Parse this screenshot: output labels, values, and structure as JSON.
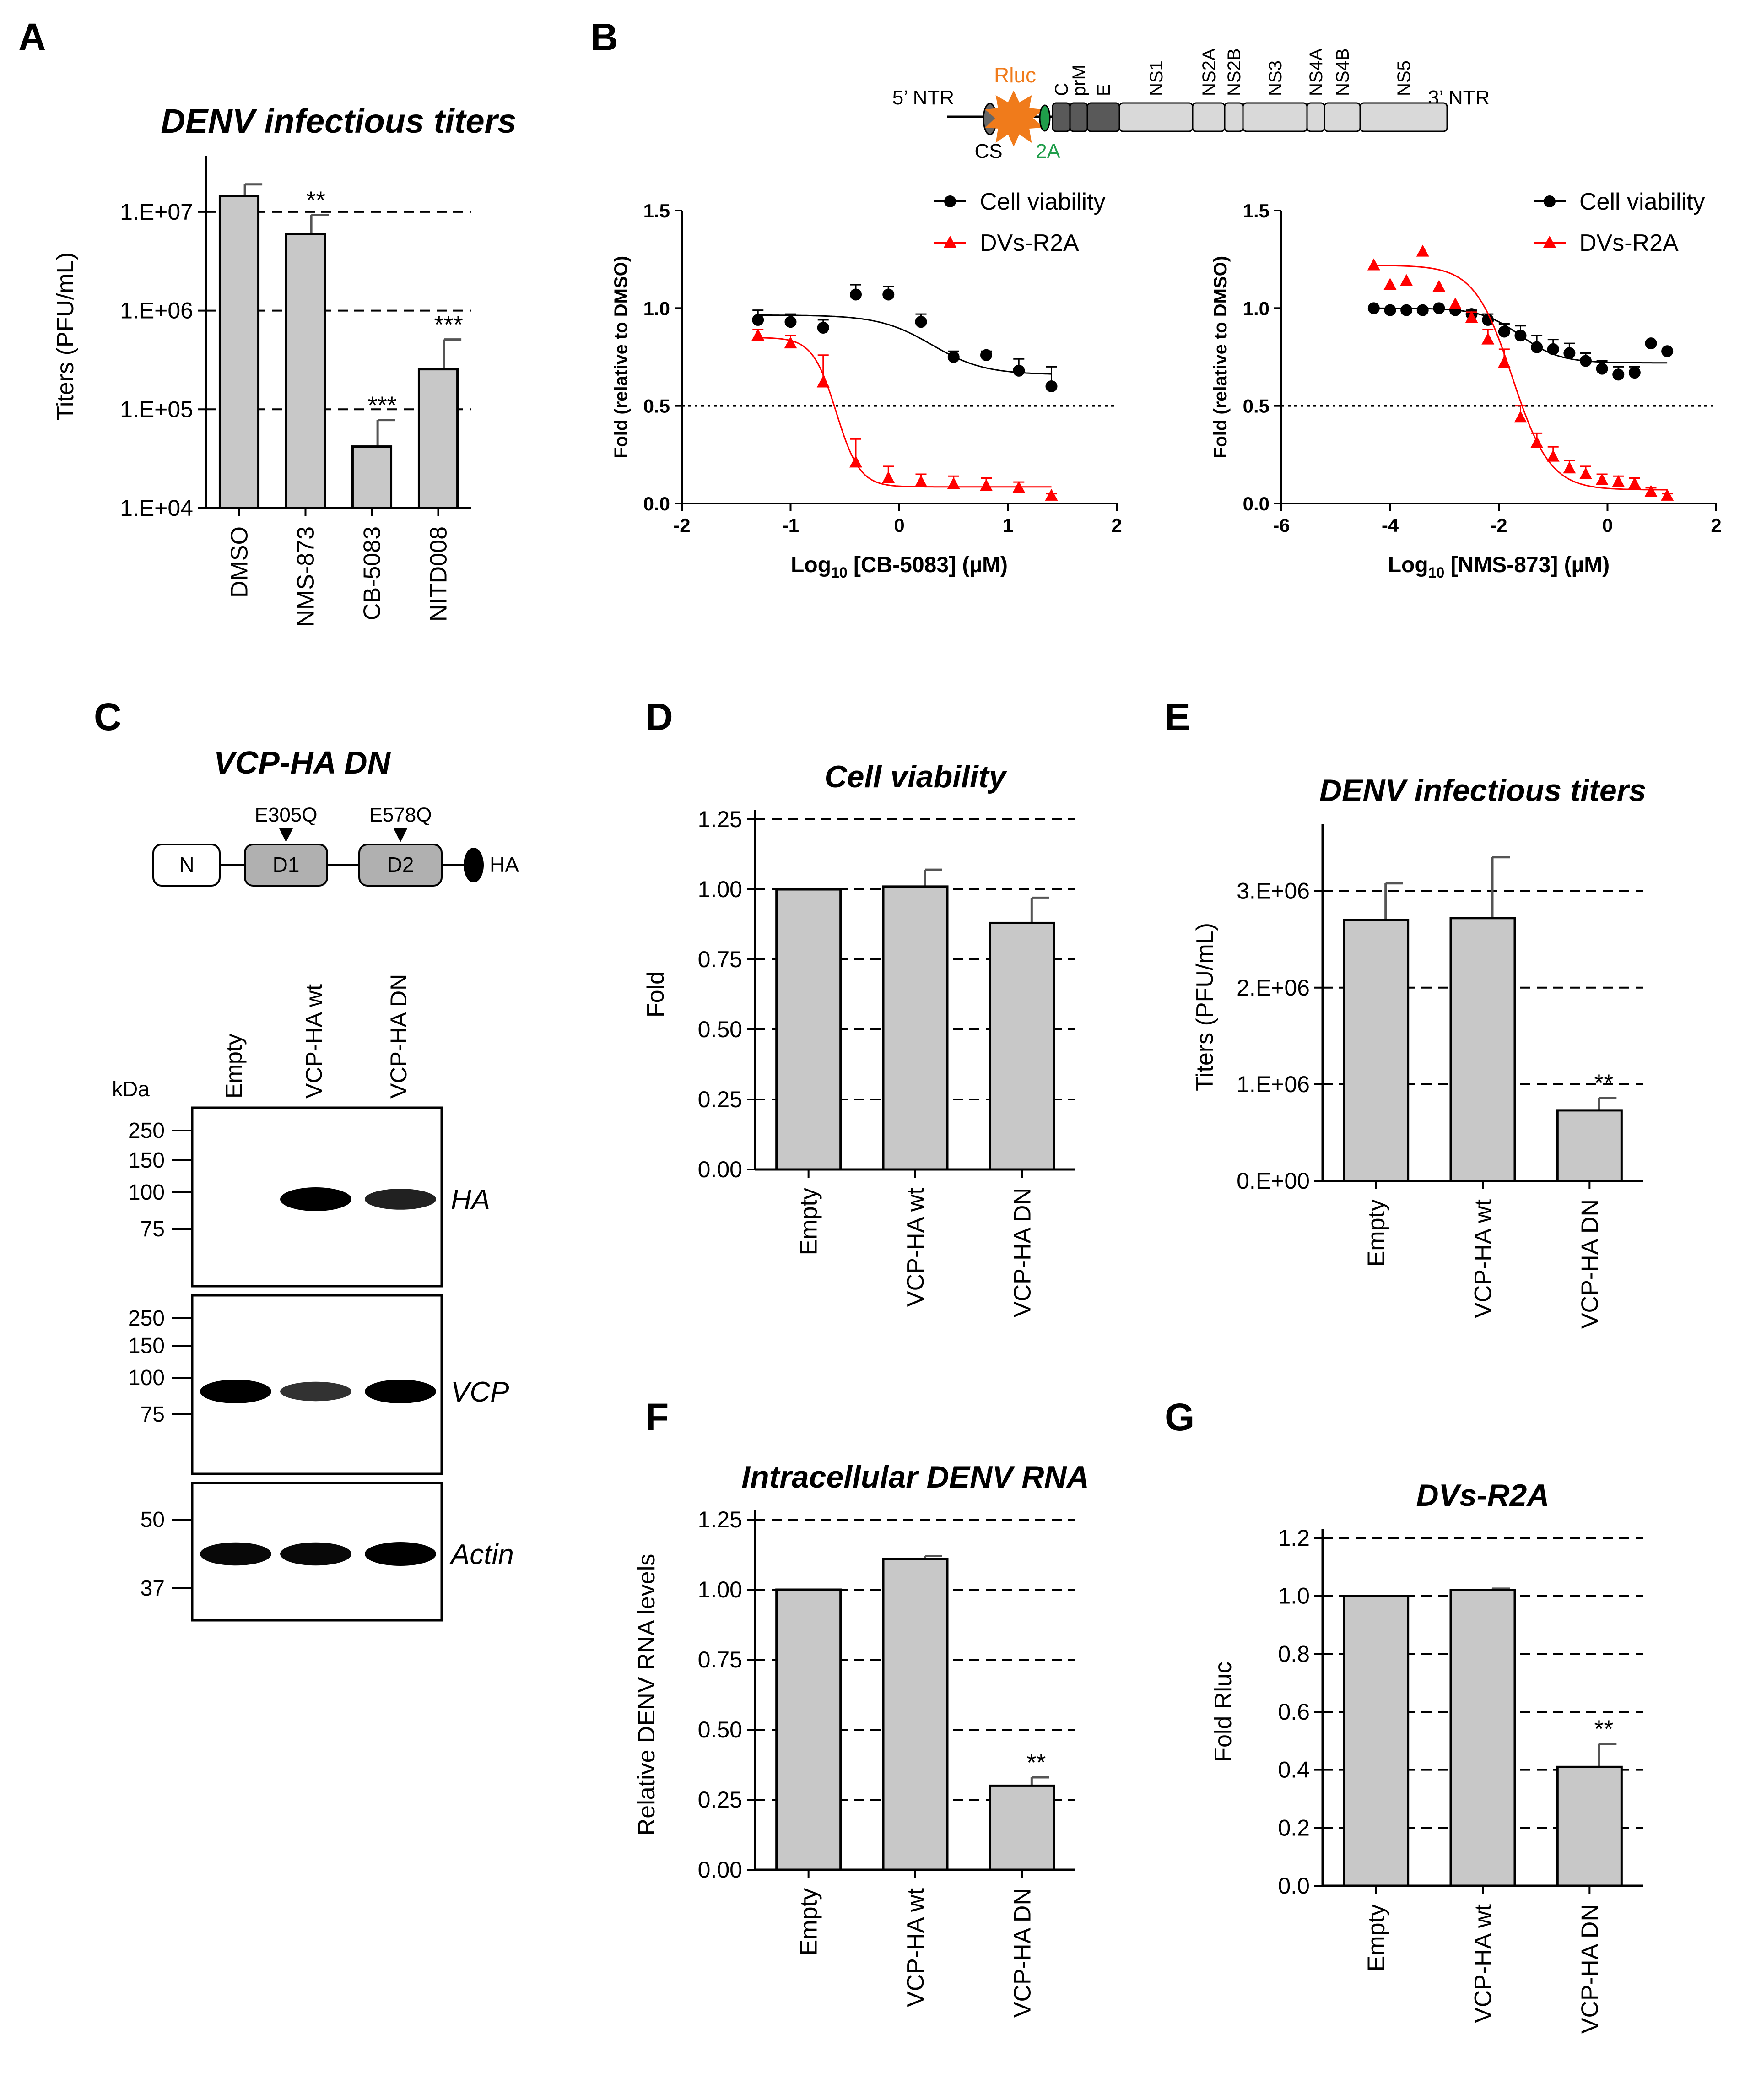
{
  "panels": {
    "A": {
      "letter": "A",
      "chart_data": {
        "type": "bar",
        "title": "DENV infectious titers",
        "ylabel": "Titers (PFU/mL)",
        "yscale": "log",
        "ylim": [
          10000,
          30000000
        ],
        "yticks": [
          "1.E+04",
          "1.E+05",
          "1.E+06",
          "1.E+07"
        ],
        "categories": [
          "DMSO",
          "NMS-873",
          "CB-5083",
          "NITD008"
        ],
        "values": [
          14500000,
          6000000,
          42000,
          255000
        ],
        "errors": [
          19000000,
          9300000,
          78000,
          510000
        ],
        "significance": [
          "",
          "**",
          "***",
          "***"
        ],
        "bar_color": "#c8c8c8"
      }
    },
    "B": {
      "letter": "B",
      "schematic": {
        "ntr5": "5’ NTR",
        "ntr3": "3’ NTR",
        "cs": "CS",
        "rluc": "Rluc",
        "twoA": "2A",
        "genes": [
          "C",
          "prM",
          "E",
          "NS1",
          "NS2A",
          "NS2B",
          "NS3",
          "NS4A",
          "NS4B",
          "NS5"
        ],
        "rluc_color": "#f07b1b",
        "twoA_color": "#1f9d4a"
      },
      "charts": [
        {
          "type": "scatter",
          "xlabel_pre": "Log",
          "xlabel_sub": "10",
          "xlabel_post": " [CB-5083] (µM)",
          "ylabel": "Fold (relative to DMSO)",
          "xlim": [
            -2,
            2
          ],
          "ylim": [
            0,
            1.5
          ],
          "xticks": [
            "-2",
            "-1",
            "0",
            "1",
            "2"
          ],
          "yticks": [
            "0.0",
            "0.5",
            "1.0",
            "1.5"
          ],
          "threshold": 0.5,
          "legend": [
            "Cell viability",
            "DVs-R2A"
          ],
          "series": [
            {
              "name": "Cell viability",
              "color": "#000000",
              "marker": "circle",
              "x": [
                -1.3,
                -1.0,
                -0.7,
                -0.4,
                -0.1,
                0.2,
                0.5,
                0.8,
                1.1,
                1.4
              ],
              "y": [
                0.94,
                0.93,
                0.9,
                1.07,
                1.07,
                0.93,
                0.75,
                0.76,
                0.68,
                0.6
              ],
              "err": [
                0.05,
                0.04,
                0.04,
                0.05,
                0.04,
                0.04,
                0.03,
                0.02,
                0.06,
                0.1
              ],
              "fit": {
                "bottom": 0.66,
                "top": 0.965,
                "logic50": 0.3,
                "hill": -1.8
              }
            },
            {
              "name": "DVs-R2A",
              "color": "#ff0000",
              "marker": "triangle",
              "x": [
                -1.3,
                -1.0,
                -0.7,
                -0.4,
                -0.1,
                0.2,
                0.5,
                0.8,
                1.1,
                1.4
              ],
              "y": [
                0.86,
                0.82,
                0.62,
                0.21,
                0.13,
                0.11,
                0.1,
                0.09,
                0.08,
                0.04
              ],
              "err": [
                0.03,
                0.04,
                0.14,
                0.12,
                0.06,
                0.04,
                0.04,
                0.04,
                0.03,
                0.01
              ],
              "fit": {
                "bottom": 0.085,
                "top": 0.85,
                "logic50": -0.58,
                "hill": -4.0
              }
            }
          ]
        },
        {
          "type": "scatter",
          "xlabel_pre": "Log",
          "xlabel_sub": "10",
          "xlabel_post": " [NMS-873] (µM)",
          "ylabel": "Fold (relative to DMSO)",
          "xlim": [
            -6,
            2
          ],
          "ylim": [
            0,
            1.5
          ],
          "xticks": [
            "-6",
            "-4",
            "-2",
            "0",
            "2"
          ],
          "yticks": [
            "0.0",
            "0.5",
            "1.0",
            "1.5"
          ],
          "threshold": 0.5,
          "legend": [
            "Cell viability",
            "DVs-R2A"
          ],
          "series": [
            {
              "name": "Cell viability",
              "color": "#000000",
              "marker": "circle",
              "x": [
                -4.3,
                -4.0,
                -3.7,
                -3.4,
                -3.1,
                -2.8,
                -2.5,
                -2.2,
                -1.9,
                -1.6,
                -1.3,
                -1.0,
                -0.7,
                -0.4,
                -0.1,
                0.2,
                0.5,
                0.8,
                1.1
              ],
              "y": [
                1.0,
                0.99,
                0.99,
                0.99,
                1.0,
                0.99,
                0.97,
                0.94,
                0.88,
                0.86,
                0.8,
                0.79,
                0.77,
                0.73,
                0.69,
                0.66,
                0.67,
                0.82,
                0.78
              ],
              "err": [
                0.01,
                0.01,
                0.01,
                0.01,
                0.01,
                0.01,
                0.02,
                0.03,
                0.04,
                0.05,
                0.06,
                0.05,
                0.05,
                0.04,
                0.04,
                0.04,
                0.03,
                0.0,
                0.0
              ],
              "fit": {
                "bottom": 0.72,
                "top": 1.0,
                "logic50": -1.6,
                "hill": -1.2
              }
            },
            {
              "name": "DVs-R2A",
              "color": "#ff0000",
              "marker": "triangle",
              "x": [
                -4.3,
                -4.0,
                -3.7,
                -3.4,
                -3.1,
                -2.8,
                -2.5,
                -2.2,
                -1.9,
                -1.6,
                -1.3,
                -1.0,
                -0.7,
                -0.4,
                -0.1,
                0.2,
                0.5,
                0.8,
                1.1
              ],
              "y": [
                1.22,
                1.12,
                1.14,
                1.29,
                1.11,
                1.02,
                0.95,
                0.84,
                0.72,
                0.44,
                0.31,
                0.24,
                0.18,
                0.15,
                0.12,
                0.11,
                0.1,
                0.06,
                0.04
              ],
              "err": [
                0.0,
                0.0,
                0.0,
                0.0,
                0.0,
                0.0,
                0.03,
                0.05,
                0.07,
                0.06,
                0.05,
                0.05,
                0.04,
                0.04,
                0.03,
                0.03,
                0.03,
                0.02,
                0.01
              ],
              "fit": {
                "bottom": 0.07,
                "top": 1.22,
                "logic50": -1.75,
                "hill": -1.25
              }
            }
          ]
        }
      ]
    },
    "C": {
      "letter": "C",
      "title": "VCP-HA DN",
      "domains": [
        "N",
        "D1",
        "D2",
        "HA"
      ],
      "mutations": [
        "E305Q",
        "E578Q"
      ],
      "lanes": [
        "Empty",
        "VCP-HA wt",
        "VCP-HA DN"
      ],
      "kda_label": "kDa",
      "blots": [
        {
          "label": "HA",
          "markers": [
            "250",
            "150",
            "100",
            "75"
          ],
          "band_intensity": [
            0.0,
            1.0,
            0.8
          ]
        },
        {
          "label": "VCP",
          "markers": [
            "250",
            "150",
            "100",
            "75"
          ],
          "band_intensity": [
            1.0,
            0.7,
            1.0
          ]
        },
        {
          "label": "Actin",
          "markers": [
            "50",
            "37"
          ],
          "band_intensity": [
            0.95,
            0.95,
            1.0
          ]
        }
      ]
    },
    "D": {
      "letter": "D",
      "chart_data": {
        "type": "bar",
        "title": "Cell viability",
        "ylabel": "Fold",
        "ylim": [
          0,
          1.25
        ],
        "yticks": [
          "0.00",
          "0.25",
          "0.50",
          "0.75",
          "1.00",
          "1.25"
        ],
        "categories": [
          "Empty",
          "VCP-HA wt",
          "VCP-HA DN"
        ],
        "values": [
          1.0,
          1.01,
          0.88
        ],
        "errors": [
          0.0,
          0.06,
          0.09
        ],
        "significance": [
          "",
          "",
          ""
        ],
        "bar_color": "#c8c8c8"
      }
    },
    "E": {
      "letter": "E",
      "chart_data": {
        "type": "bar",
        "title": "DENV infectious titers",
        "ylabel": "Titers (PFU/mL)",
        "ylim": [
          0,
          3600000
        ],
        "ytick_values": [
          0,
          1000000,
          2000000,
          3000000
        ],
        "yticks": [
          "0.E+00",
          "1.E+06",
          "2.E+06",
          "3.E+06"
        ],
        "categories": [
          "Empty",
          "VCP-HA wt",
          "VCP-HA DN"
        ],
        "values": [
          2700000,
          2720000,
          730000
        ],
        "errors": [
          380000,
          630000,
          130000
        ],
        "significance": [
          "",
          "",
          "**"
        ],
        "bar_color": "#c8c8c8"
      }
    },
    "F": {
      "letter": "F",
      "chart_data": {
        "type": "bar",
        "title": "Intracellular DENV RNA",
        "ylabel": "Relative DENV RNA levels",
        "ylim": [
          0,
          1.25
        ],
        "yticks": [
          "0.00",
          "0.25",
          "0.50",
          "0.75",
          "1.00",
          "1.25"
        ],
        "categories": [
          "Empty",
          "VCP-HA wt",
          "VCP-HA DN"
        ],
        "values": [
          1.0,
          1.11,
          0.3
        ],
        "errors": [
          0.0,
          0.01,
          0.03
        ],
        "significance": [
          "",
          "",
          "**"
        ],
        "bar_color": "#c8c8c8"
      }
    },
    "G": {
      "letter": "G",
      "chart_data": {
        "type": "bar",
        "title": "DVs-R2A",
        "ylabel": "Fold Rluc",
        "ylim": [
          0,
          1.2
        ],
        "yticks": [
          "0.0",
          "0.2",
          "0.4",
          "0.6",
          "0.8",
          "1.0",
          "1.2"
        ],
        "categories": [
          "Empty",
          "VCP-HA wt",
          "VCP-HA DN"
        ],
        "values": [
          1.0,
          1.02,
          0.41
        ],
        "errors": [
          0.0,
          0.005,
          0.08
        ],
        "significance": [
          "",
          "",
          "**"
        ],
        "bar_color": "#c8c8c8"
      }
    }
  }
}
